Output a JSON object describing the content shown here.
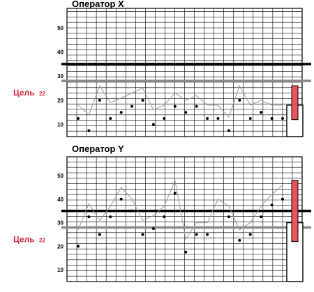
{
  "chart_data": [
    {
      "type": "line",
      "title": "Оператор X",
      "yticks": [
        10,
        20,
        30,
        40,
        50
      ],
      "ylim": [
        5,
        58
      ],
      "goal_label": "Цель",
      "goal_value": "22",
      "thick_line": 35,
      "gray_line": 28,
      "series": [
        {
          "values": [
            18,
            14,
            26,
            19,
            21,
            23,
            25,
            16,
            18,
            23,
            20,
            22,
            18,
            18,
            13,
            26,
            18,
            20,
            18,
            18
          ]
        }
      ],
      "points": [
        12.5,
        7.5,
        20,
        12.5,
        15,
        17.5,
        20,
        10,
        12.5,
        17.5,
        15,
        17.5,
        12.5,
        12.5,
        7.5,
        20,
        12.5,
        15,
        12.5,
        12.5
      ],
      "box": {
        "low": 5,
        "high": 18
      },
      "red_bar": {
        "low": 12,
        "high": 26
      },
      "colors": {
        "accent": "#e8565a",
        "line": "#9a9a9a",
        "gray_line": "#8a8a8a"
      }
    },
    {
      "type": "line",
      "title": "Оператор Y",
      "yticks": [
        10,
        20,
        30,
        40,
        50
      ],
      "ylim": [
        5,
        58
      ],
      "goal_label": "Цель",
      "goal_value": "22",
      "thick_line": 35,
      "gray_line": 28,
      "series": [
        {
          "values": [
            27,
            38,
            31,
            37,
            45,
            40,
            31,
            33,
            37,
            48,
            23,
            30,
            30,
            40,
            37,
            27,
            30,
            37,
            42,
            46
          ]
        }
      ],
      "points": [
        20,
        32.5,
        25,
        32.5,
        40,
        35,
        25,
        27.5,
        32.5,
        42.5,
        17.5,
        25,
        25,
        35,
        32.5,
        22.5,
        25,
        32.5,
        37.5,
        40
      ],
      "box": {
        "low": 5,
        "high": 30
      },
      "red_bar": {
        "low": 22,
        "high": 48
      },
      "colors": {
        "accent": "#e8565a",
        "line": "#9a9a9a",
        "gray_line": "#8a8a8a"
      }
    }
  ]
}
